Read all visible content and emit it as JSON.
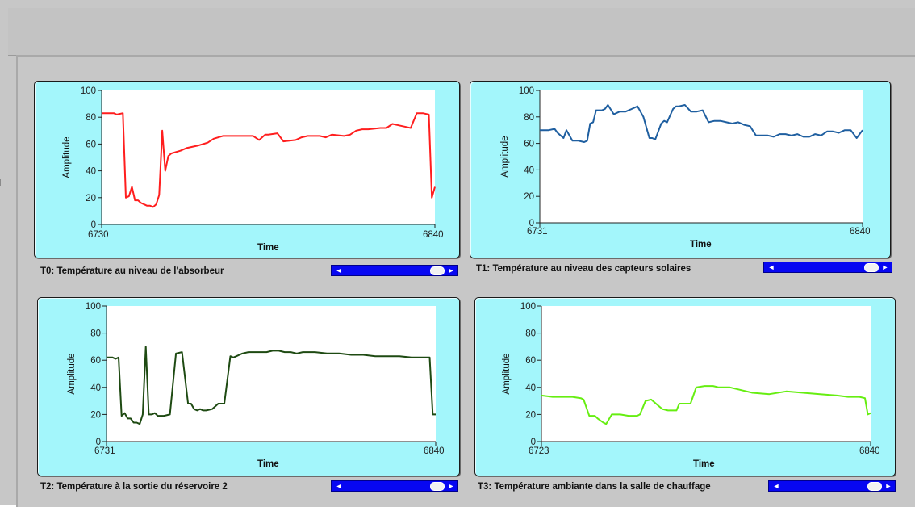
{
  "graphs": [
    {
      "caption": "T0: Température au niveau de l'absorbeur",
      "ylabel": "Amplitude",
      "xlabel": "Time",
      "x_start": "6730",
      "x_end": "6840",
      "y_ticks": [
        "100",
        "80",
        "60",
        "40",
        "20",
        "0"
      ],
      "color": "#ff1e1e"
    },
    {
      "caption": "T1: Température au niveau des capteurs solaires",
      "ylabel": "Amplitude",
      "xlabel": "Time",
      "x_start": "6731",
      "x_end": "6840",
      "y_ticks": [
        "100",
        "80",
        "60",
        "40",
        "20",
        "0"
      ],
      "color": "#1f5fa0"
    },
    {
      "caption": "T2: Température à la sortie du réservoire 2",
      "ylabel": "Amplitude",
      "xlabel": "Time",
      "x_start": "6731",
      "x_end": "6840",
      "y_ticks": [
        "100",
        "80",
        "60",
        "40",
        "20",
        "0"
      ],
      "color": "#1e4a12"
    },
    {
      "caption": "T3: Température ambiante dans la salle de chauffage",
      "ylabel": "Amplitude",
      "xlabel": "Time",
      "x_start": "6723",
      "x_end": "6840",
      "y_ticks": [
        "100",
        "80",
        "60",
        "40",
        "20",
        "0"
      ],
      "color": "#66ee11"
    }
  ],
  "scrollbar": {
    "left_arrow": "◄",
    "right_arrow": "►"
  },
  "chart_data": [
    {
      "type": "line",
      "title": "T0: Température au niveau de l'absorbeur",
      "xlabel": "Time",
      "ylabel": "Amplitude",
      "xlim": [
        6730,
        6840
      ],
      "ylim": [
        0,
        100
      ],
      "series": [
        {
          "color": "#ff1e1e",
          "x": [
            6730,
            6734,
            6735,
            6737,
            6738,
            6739,
            6740,
            6741,
            6742,
            6743,
            6745,
            6746,
            6747,
            6748,
            6749,
            6750,
            6751,
            6752,
            6753,
            6756,
            6758,
            6762,
            6765,
            6767,
            6770,
            6776,
            6777,
            6778,
            6780,
            6782,
            6784,
            6785,
            6788,
            6790,
            6794,
            6796,
            6798,
            6800,
            6802,
            6804,
            6806,
            6810,
            6812,
            6814,
            6816,
            6818,
            6822,
            6824,
            6826,
            6828,
            6830,
            6832,
            6834,
            6835,
            6836,
            6838,
            6839,
            6840
          ],
          "y": [
            83,
            83,
            82,
            83,
            20,
            21,
            28,
            18,
            18,
            16,
            14,
            14,
            13,
            15,
            22,
            70,
            40,
            51,
            53,
            55,
            57,
            59,
            61,
            64,
            66,
            66,
            66,
            66,
            66,
            63,
            67,
            67,
            68,
            62,
            63,
            65,
            66,
            66,
            66,
            65,
            67,
            66,
            67,
            70,
            71,
            71,
            72,
            72,
            75,
            74,
            73,
            72,
            83,
            83,
            83,
            82,
            20,
            28
          ]
        }
      ]
    },
    {
      "type": "line",
      "title": "T1: Température au niveau des capteurs solaires",
      "xlabel": "Time",
      "ylabel": "Amplitude",
      "xlim": [
        6731,
        6840
      ],
      "ylim": [
        0,
        100
      ],
      "series": [
        {
          "color": "#1f5fa0",
          "x": [
            6731,
            6734,
            6736,
            6737,
            6739,
            6740,
            6742,
            6744,
            6746,
            6747,
            6748,
            6749,
            6750,
            6752,
            6753,
            6754,
            6756,
            6758,
            6760,
            6762,
            6764,
            6766,
            6768,
            6769,
            6770,
            6772,
            6773,
            6774,
            6776,
            6777,
            6778,
            6780,
            6782,
            6784,
            6786,
            6788,
            6790,
            6792,
            6794,
            6796,
            6798,
            6800,
            6802,
            6804,
            6806,
            6808,
            6810,
            6812,
            6814,
            6816,
            6818,
            6820,
            6822,
            6824,
            6826,
            6828,
            6830,
            6832,
            6834,
            6836,
            6838,
            6840
          ],
          "y": [
            70,
            70,
            71,
            68,
            64,
            70,
            62,
            62,
            61,
            62,
            75,
            76,
            85,
            85,
            86,
            89,
            82,
            84,
            84,
            86,
            88,
            80,
            64,
            64,
            63,
            75,
            77,
            76,
            86,
            88,
            88,
            89,
            84,
            84,
            85,
            76,
            77,
            77,
            76,
            75,
            76,
            74,
            73,
            66,
            66,
            66,
            65,
            67,
            67,
            66,
            67,
            65,
            65,
            67,
            66,
            69,
            69,
            68,
            70,
            70,
            64,
            70
          ]
        }
      ]
    },
    {
      "type": "line",
      "title": "T2: Température à la sortie du réservoire 2",
      "xlabel": "Time",
      "ylabel": "Amplitude",
      "xlim": [
        6731,
        6840
      ],
      "ylim": [
        0,
        100
      ],
      "series": [
        {
          "color": "#1e4a12",
          "x": [
            6731,
            6733,
            6734,
            6735,
            6736,
            6737,
            6738,
            6739,
            6740,
            6741,
            6742,
            6743,
            6744,
            6745,
            6746,
            6747,
            6748,
            6749,
            6750,
            6752,
            6754,
            6756,
            6758,
            6759,
            6760,
            6761,
            6762,
            6763,
            6764,
            6766,
            6768,
            6770,
            6772,
            6773,
            6774,
            6775,
            6776,
            6778,
            6780,
            6782,
            6784,
            6786,
            6788,
            6790,
            6792,
            6794,
            6796,
            6798,
            6800,
            6804,
            6808,
            6812,
            6816,
            6820,
            6824,
            6828,
            6832,
            6836,
            6838,
            6839,
            6840
          ],
          "y": [
            62,
            62,
            61,
            62,
            19,
            21,
            17,
            17,
            14,
            14,
            13,
            20,
            70,
            20,
            20,
            21,
            19,
            19,
            19,
            20,
            65,
            66,
            28,
            28,
            24,
            23,
            24,
            23,
            23,
            24,
            28,
            28,
            63,
            62,
            63,
            64,
            65,
            66,
            66,
            66,
            66,
            67,
            67,
            66,
            66,
            65,
            66,
            66,
            66,
            65,
            65,
            64,
            64,
            63,
            63,
            63,
            62,
            62,
            62,
            20,
            20
          ]
        }
      ]
    },
    {
      "type": "line",
      "title": "T3: Température ambiante dans la salle de chauffage",
      "xlabel": "Time",
      "ylabel": "Amplitude",
      "xlim": [
        6723,
        6840
      ],
      "ylim": [
        0,
        100
      ],
      "series": [
        {
          "color": "#66ee11",
          "x": [
            6723,
            6727,
            6731,
            6734,
            6737,
            6738,
            6740,
            6742,
            6743,
            6745,
            6746,
            6748,
            6751,
            6754,
            6757,
            6758,
            6760,
            6762,
            6766,
            6768,
            6771,
            6772,
            6776,
            6778,
            6781,
            6783,
            6784,
            6786,
            6790,
            6794,
            6798,
            6804,
            6810,
            6816,
            6822,
            6828,
            6832,
            6836,
            6838,
            6839,
            6840
          ],
          "y": [
            34,
            33,
            33,
            33,
            32,
            31,
            19,
            19,
            17,
            14,
            13,
            20,
            20,
            19,
            19,
            20,
            30,
            31,
            24,
            23,
            23,
            28,
            28,
            40,
            41,
            41,
            41,
            40,
            40,
            38,
            36,
            35,
            37,
            36,
            35,
            34,
            33,
            33,
            32,
            20,
            21
          ]
        }
      ]
    }
  ]
}
